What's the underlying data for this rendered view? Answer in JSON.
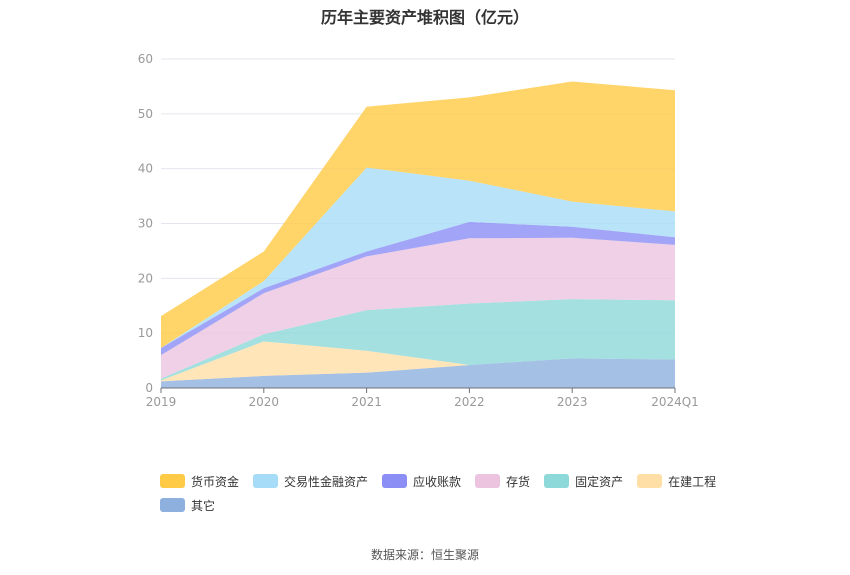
{
  "chart_data": {
    "type": "area",
    "stacked": true,
    "title": "历年主要资产堆积图（亿元）",
    "x": [
      "2019",
      "2020",
      "2021",
      "2022",
      "2023",
      "2024Q1"
    ],
    "ylim": [
      0,
      60
    ],
    "yticks": [
      0,
      10,
      20,
      30,
      40,
      50,
      60
    ],
    "grid": true,
    "legend_position": "bottom",
    "series": [
      {
        "name": "其它",
        "color": "#8eb0de",
        "values": [
          1.2,
          2.2,
          2.8,
          4.2,
          5.4,
          5.2
        ]
      },
      {
        "name": "在建工程",
        "color": "#ffdfa6",
        "values": [
          0.2,
          6.3,
          4.0,
          0.0,
          0.0,
          0.0
        ]
      },
      {
        "name": "固定资产",
        "color": "#8dd8d8",
        "values": [
          0.3,
          1.3,
          7.4,
          11.2,
          10.8,
          10.8
        ]
      },
      {
        "name": "存货",
        "color": "#ecc4e0",
        "values": [
          4.3,
          7.5,
          9.8,
          11.9,
          11.2,
          10.1
        ]
      },
      {
        "name": "应收账款",
        "color": "#8b8ef5",
        "values": [
          1.3,
          0.9,
          0.9,
          3.0,
          2.0,
          1.4
        ]
      },
      {
        "name": "交易性金融资产",
        "color": "#a6dcf7",
        "values": [
          0.0,
          1.3,
          15.3,
          7.5,
          4.6,
          4.7
        ]
      },
      {
        "name": "货币资金",
        "color": "#ffca45",
        "values": [
          5.8,
          5.4,
          11.1,
          15.2,
          21.9,
          22.1
        ]
      }
    ],
    "legend_order": [
      "货币资金",
      "交易性金融资产",
      "应收账款",
      "存货",
      "固定资产",
      "在建工程",
      "其它"
    ]
  },
  "source_text": "数据来源：恒生聚源"
}
